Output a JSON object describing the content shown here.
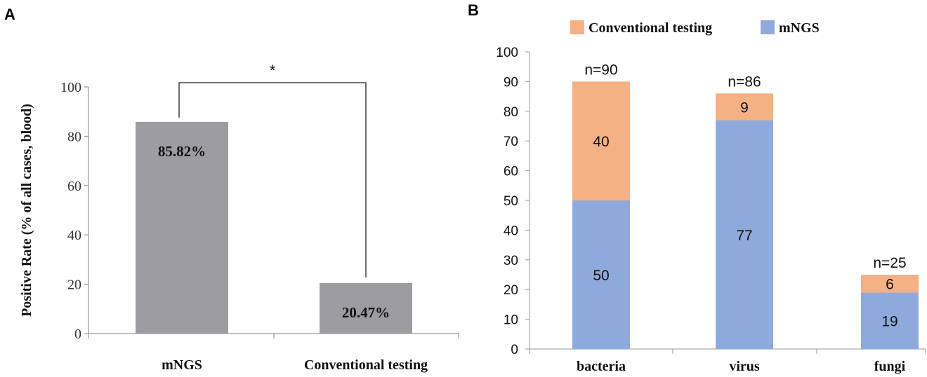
{
  "chart_data": [
    {
      "panel": "A",
      "type": "bar",
      "title": "",
      "xlabel": "",
      "ylabel": "Positive Rate (% of all cases,  blood)",
      "categories": [
        "mNGS",
        "Conventional  testing"
      ],
      "values": [
        85.82,
        20.47
      ],
      "value_labels": [
        "85.82%",
        "20.47%"
      ],
      "ylim": [
        0,
        100
      ],
      "yticks": [
        0,
        20,
        40,
        60,
        80,
        100
      ],
      "significance": "*",
      "grid": false,
      "colors": {
        "bar": "#9d9ca1"
      }
    },
    {
      "panel": "B",
      "type": "bar",
      "stacked": true,
      "title": "",
      "xlabel": "",
      "ylabel": "",
      "categories": [
        "bacteria",
        "virus",
        "fungi"
      ],
      "series": [
        {
          "name": "mNGS",
          "values": [
            50,
            77,
            19
          ],
          "color": "#8eaadc"
        },
        {
          "name": "Conventional  testing",
          "values": [
            40,
            9,
            6
          ],
          "color": "#f4b184"
        }
      ],
      "totals": [
        "n=90",
        "n=86",
        "n=25"
      ],
      "ylim": [
        0,
        100
      ],
      "yticks": [
        0,
        10,
        20,
        30,
        40,
        50,
        60,
        70,
        80,
        90,
        100
      ],
      "legend_position": "top",
      "legend_order": [
        "Conventional  testing",
        "mNGS"
      ],
      "grid": false
    }
  ]
}
